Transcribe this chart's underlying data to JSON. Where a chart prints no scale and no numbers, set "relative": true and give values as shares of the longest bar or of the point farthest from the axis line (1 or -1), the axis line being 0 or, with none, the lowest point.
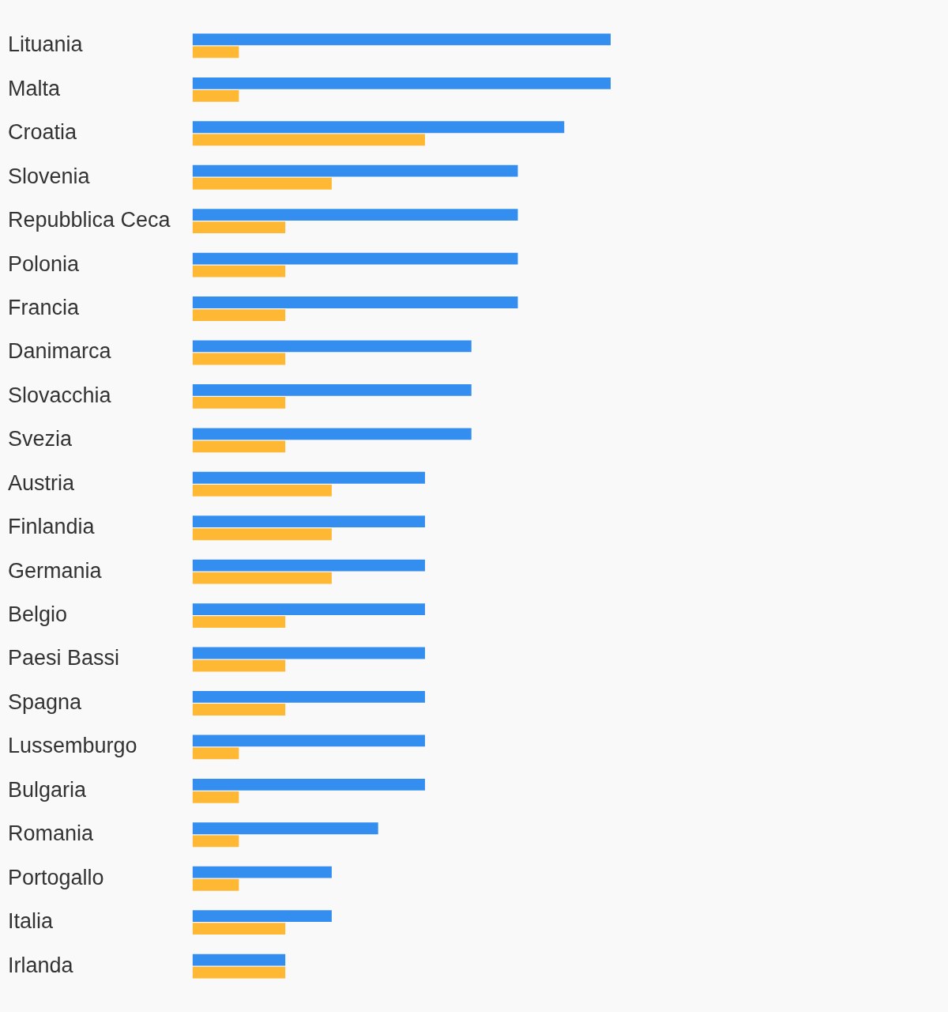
{
  "chart_data": {
    "type": "bar",
    "orientation": "horizontal",
    "relative": true,
    "categories": [
      "Lituania",
      "Malta",
      "Croatia",
      "Slovenia",
      "Repubblica Ceca",
      "Polonia",
      "Francia",
      "Danimarca",
      "Slovacchia",
      "Svezia",
      "Austria",
      "Finlandia",
      "Germania",
      "Belgio",
      "Paesi Bassi",
      "Spagna",
      "Lussemburgo",
      "Bulgaria",
      "Romania",
      "Portogallo",
      "Italia",
      "Irlanda"
    ],
    "series": [
      {
        "color": "#348ef0",
        "values": [
          1,
          1,
          0.889,
          0.778,
          0.778,
          0.778,
          0.778,
          0.667,
          0.667,
          0.667,
          0.556,
          0.556,
          0.556,
          0.556,
          0.556,
          0.556,
          0.556,
          0.556,
          0.444,
          0.333,
          0.333,
          0.222
        ]
      },
      {
        "color": "#ffb833",
        "values": [
          0.111,
          0.111,
          0.556,
          0.333,
          0.222,
          0.222,
          0.222,
          0.222,
          0.222,
          0.222,
          0.333,
          0.333,
          0.333,
          0.222,
          0.222,
          0.222,
          0.111,
          0.111,
          0.111,
          0.111,
          0.222,
          0.222
        ]
      }
    ],
    "grid": false,
    "legend": false
  }
}
